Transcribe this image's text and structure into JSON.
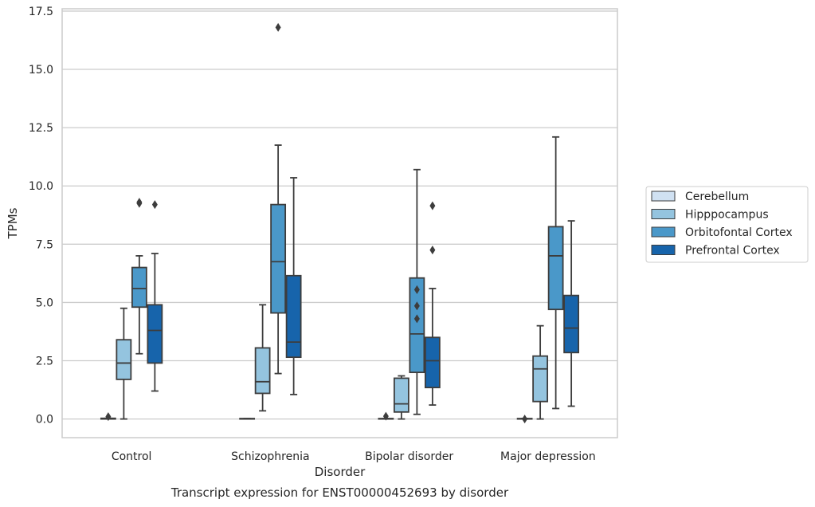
{
  "chart_data": {
    "type": "box",
    "title": "Transcript expression for ENST00000452693 by disorder",
    "xlabel": "Disorder",
    "ylabel": "TPMs",
    "ylim": [
      -0.8,
      17.6
    ],
    "yticks": [
      "0.0",
      "2.5",
      "5.0",
      "7.5",
      "10.0",
      "12.5",
      "15.0",
      "17.5"
    ],
    "grid": true,
    "legend_position": "right",
    "categories": [
      "Control",
      "Schizophrenia",
      "Bipolar disorder",
      "Major depression"
    ],
    "series": [
      {
        "name": "Cerebellum",
        "color": "#d0e1f2",
        "boxes": [
          {
            "q1": 0.0,
            "median": 0.0,
            "q3": 0.03,
            "whislo": 0.0,
            "whishi": 0.03,
            "fliers": [
              0.1
            ]
          },
          {
            "q1": 0.0,
            "median": 0.0,
            "q3": 0.02,
            "whislo": 0.0,
            "whishi": 0.02,
            "fliers": []
          },
          {
            "q1": 0.0,
            "median": 0.0,
            "q3": 0.02,
            "whislo": 0.0,
            "whishi": 0.02,
            "fliers": [
              0.12
            ]
          },
          {
            "q1": 0.0,
            "median": 0.0,
            "q3": 0.02,
            "whislo": 0.0,
            "whishi": 0.02,
            "fliers": [
              0.0
            ]
          }
        ]
      },
      {
        "name": "Hipppocampus",
        "color": "#94c4df",
        "boxes": [
          {
            "q1": 1.7,
            "median": 2.4,
            "q3": 3.4,
            "whislo": 0.0,
            "whishi": 4.75,
            "fliers": []
          },
          {
            "q1": 1.1,
            "median": 1.6,
            "q3": 3.05,
            "whislo": 0.35,
            "whishi": 4.9,
            "fliers": []
          },
          {
            "q1": 0.3,
            "median": 0.65,
            "q3": 1.75,
            "whislo": 0.0,
            "whishi": 1.85,
            "fliers": []
          },
          {
            "q1": 0.75,
            "median": 2.15,
            "q3": 2.7,
            "whislo": 0.0,
            "whishi": 4.0,
            "fliers": []
          }
        ]
      },
      {
        "name": "Orbitofontal Cortex",
        "color": "#4a98c9",
        "boxes": [
          {
            "q1": 4.8,
            "median": 5.6,
            "q3": 6.5,
            "whislo": 2.8,
            "whishi": 7.0,
            "fliers": [
              9.25,
              9.3
            ]
          },
          {
            "q1": 4.55,
            "median": 6.75,
            "q3": 9.2,
            "whislo": 1.95,
            "whishi": 11.75,
            "fliers": [
              16.8
            ]
          },
          {
            "q1": 2.0,
            "median": 3.65,
            "q3": 6.05,
            "whislo": 0.2,
            "whishi": 10.7,
            "fliers": [
              4.3,
              4.85,
              5.55
            ]
          },
          {
            "q1": 4.7,
            "median": 7.0,
            "q3": 8.25,
            "whislo": 0.45,
            "whishi": 12.1,
            "fliers": []
          }
        ]
      },
      {
        "name": "Prefrontal Cortex",
        "color": "#1764ab",
        "boxes": [
          {
            "q1": 2.4,
            "median": 3.8,
            "q3": 4.9,
            "whislo": 1.2,
            "whishi": 7.1,
            "fliers": [
              9.2
            ]
          },
          {
            "q1": 2.65,
            "median": 3.3,
            "q3": 6.15,
            "whislo": 1.05,
            "whishi": 10.35,
            "fliers": []
          },
          {
            "q1": 1.35,
            "median": 2.5,
            "q3": 3.5,
            "whislo": 0.6,
            "whishi": 5.6,
            "fliers": [
              7.25,
              9.15
            ]
          },
          {
            "q1": 2.85,
            "median": 3.9,
            "q3": 5.3,
            "whislo": 0.55,
            "whishi": 8.5,
            "fliers": []
          }
        ]
      }
    ]
  }
}
